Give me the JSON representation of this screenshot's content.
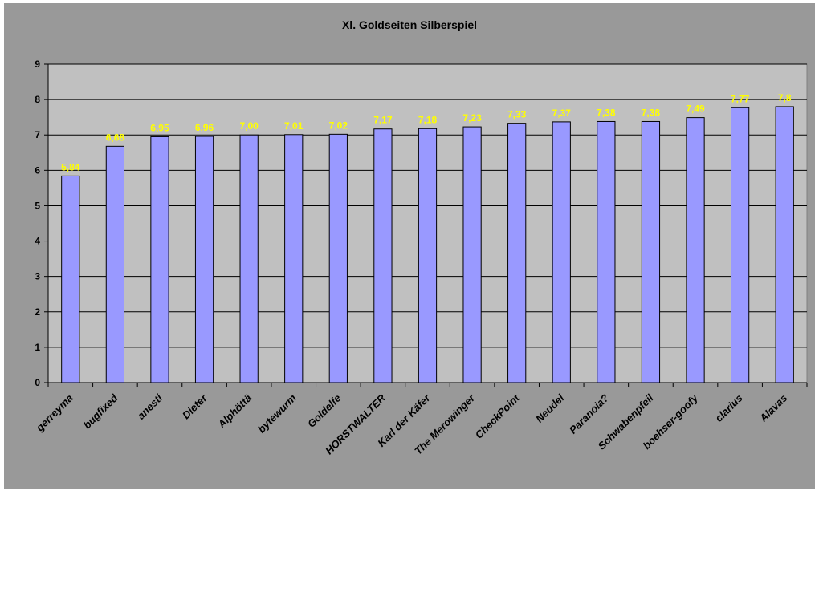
{
  "chart_data": {
    "type": "bar",
    "title": "Xl. Goldseiten Silberspiel",
    "xlabel": "",
    "ylabel": "",
    "ylim": [
      0,
      9
    ],
    "yticks": [
      0,
      1,
      2,
      3,
      4,
      5,
      6,
      7,
      8,
      9
    ],
    "grid": true,
    "legend": "none",
    "categories": [
      "gerreyma",
      "bugfixed",
      "anesti",
      "Dieter",
      "Alphöttä",
      "bytewurm",
      "Goldelfe",
      "HORSTWALTER",
      "Karl der Käfer",
      "The Merowinger",
      "CheckPoint",
      "Neudel",
      "Paranoia?",
      "Schwabenpfeil",
      "boehser-goofy",
      "clarius",
      "Alavas"
    ],
    "values": [
      5.84,
      6.68,
      6.95,
      6.96,
      7.0,
      7.01,
      7.02,
      7.17,
      7.18,
      7.23,
      7.33,
      7.37,
      7.38,
      7.38,
      7.49,
      7.77,
      7.8
    ],
    "data_labels": [
      "5,84",
      "6,68",
      "6,95",
      "6,96",
      "7,00",
      "7,01",
      "7,02",
      "7,17",
      "7,18",
      "7,23",
      "7,33",
      "7,37",
      "7,38",
      "7,38",
      "7,49",
      "7,77",
      "7,8"
    ],
    "colors": {
      "bar_fill": "#9999ff",
      "bar_stroke": "#000000",
      "plot_background": "#c0c0c0",
      "chart_background": "#999999",
      "data_label": "#ffff00",
      "gridline": "#000000"
    }
  }
}
